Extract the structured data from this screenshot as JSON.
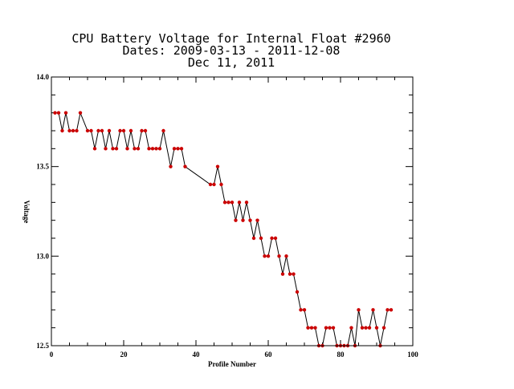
{
  "chart_data": {
    "type": "line",
    "title_lines": [
      "CPU Battery Voltage for Internal Float #2960",
      "Dates:  2009-03-13 -  2011-12-08",
      "Dec 11, 2011"
    ],
    "xlabel": "Profile Number",
    "ylabel": "Voltage",
    "xlim": [
      0,
      100
    ],
    "ylim": [
      12.5,
      14.0
    ],
    "x_tick_labels": [
      "0",
      "20",
      "40",
      "60",
      "80",
      "100"
    ],
    "y_tick_labels": [
      "14.0",
      "13.5",
      "13.0",
      "12.5"
    ],
    "grid": false,
    "line_color": "#000000",
    "marker_color": "#cc0000",
    "series": [
      {
        "x": [
          1,
          2,
          3,
          4,
          5,
          6,
          7,
          8,
          10,
          11,
          12,
          13,
          14,
          15,
          16,
          17,
          18,
          19,
          20,
          21,
          22,
          23,
          24,
          25,
          26,
          27,
          28,
          29,
          30,
          31,
          33,
          34,
          35,
          36,
          37,
          44,
          45,
          46,
          47,
          48,
          49,
          50,
          51,
          52,
          53,
          54,
          55,
          56,
          57,
          58,
          59,
          60,
          61,
          62,
          63,
          64,
          65,
          66,
          67,
          68,
          69,
          70,
          71,
          72,
          73,
          74,
          75,
          76,
          77,
          78,
          79,
          80,
          81,
          82,
          83,
          84,
          85,
          86,
          87,
          88,
          89,
          90,
          91,
          92,
          93,
          94
        ],
        "y": [
          13.8,
          13.8,
          13.7,
          13.8,
          13.7,
          13.7,
          13.7,
          13.8,
          13.7,
          13.7,
          13.6,
          13.7,
          13.7,
          13.6,
          13.7,
          13.6,
          13.6,
          13.7,
          13.7,
          13.6,
          13.7,
          13.6,
          13.6,
          13.7,
          13.7,
          13.6,
          13.6,
          13.6,
          13.6,
          13.7,
          13.5,
          13.6,
          13.6,
          13.6,
          13.5,
          13.4,
          13.4,
          13.5,
          13.4,
          13.3,
          13.3,
          13.3,
          13.2,
          13.3,
          13.2,
          13.3,
          13.2,
          13.1,
          13.2,
          13.1,
          13.0,
          13.0,
          13.1,
          13.1,
          13.0,
          12.9,
          13.0,
          12.9,
          12.9,
          12.8,
          12.7,
          12.7,
          12.6,
          12.6,
          12.6,
          12.5,
          12.5,
          12.6,
          12.6,
          12.6,
          12.5,
          12.5,
          12.5,
          12.5,
          12.6,
          12.5,
          12.7,
          12.6,
          12.6,
          12.6,
          12.7,
          12.6,
          12.5,
          12.6,
          12.7,
          12.7
        ]
      }
    ]
  }
}
